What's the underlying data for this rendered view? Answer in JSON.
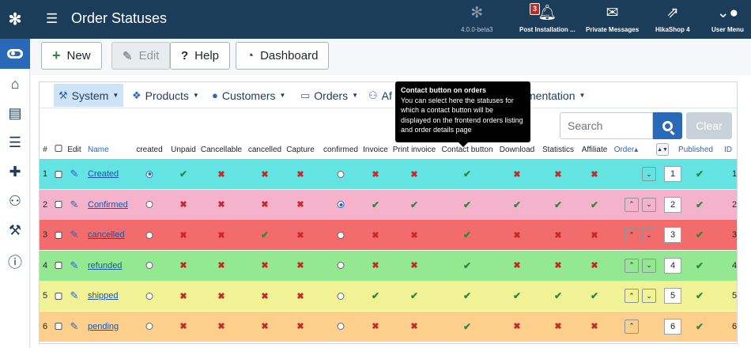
{
  "header": {
    "title": "Order Statuses",
    "version": "4.0.0-beta3",
    "items": [
      {
        "label": "Post Installation ...",
        "badge": "3",
        "icon": "bell-icon"
      },
      {
        "label": "Private Messages",
        "icon": "envelope-icon"
      },
      {
        "label": "HikaShop 4",
        "icon": "external-link-icon"
      },
      {
        "label": "User Menu",
        "icon": "user-icon"
      }
    ]
  },
  "toolbar": {
    "new_label": "New",
    "edit_label": "Edit",
    "help_label": "Help",
    "dashboard_label": "Dashboard"
  },
  "menu": {
    "items": [
      "System",
      "Products",
      "Customers",
      "Orders",
      "Af",
      "mentation"
    ]
  },
  "tooltip": {
    "title": "Contact button on orders",
    "body": "You can select here the statuses for which a contact button will be displayed on the frontend orders listing and order details page"
  },
  "search": {
    "placeholder": "Search",
    "clear_label": "Clear"
  },
  "table": {
    "headers": {
      "num": "#",
      "edit": "Edit",
      "name": "Name",
      "created": "created",
      "unpaid": "Unpaid",
      "cancellable": "Cancellable",
      "cancelled": "cancelled",
      "capture": "Capture",
      "confirmed": "confirmed",
      "invoice": "Invoice",
      "print_invoice": "Print invoice",
      "contact_button": "Contact button",
      "download": "Download",
      "statistics": "Statistics",
      "affiliate": "Affiliate",
      "order": "Order▴",
      "published": "Published",
      "id": "ID"
    },
    "rows": [
      {
        "num": "1",
        "name": "Created",
        "color": "#64e3e3",
        "created": true,
        "confirmed": false,
        "flags": [
          "check",
          "cross",
          "cross",
          "cross",
          "cross",
          "cross",
          "check",
          "cross",
          "cross",
          "cross"
        ],
        "up": false,
        "down": true,
        "order": "1",
        "id": "1"
      },
      {
        "num": "2",
        "name": "Confirmed",
        "color": "#f5b2cb",
        "created": false,
        "confirmed": true,
        "flags": [
          "cross",
          "cross",
          "cross",
          "cross",
          "check",
          "check",
          "check",
          "check",
          "check",
          "check"
        ],
        "up": true,
        "down": true,
        "order": "2",
        "id": "2"
      },
      {
        "num": "3",
        "name": "cancelled",
        "color": "#f26c6c",
        "created": false,
        "confirmed": false,
        "flags": [
          "cross",
          "cross",
          "check",
          "cross",
          "cross",
          "cross",
          "check",
          "cross",
          "cross",
          "cross"
        ],
        "up": true,
        "down": true,
        "order": "3",
        "id": "3"
      },
      {
        "num": "4",
        "name": "refunded",
        "color": "#93e891",
        "created": false,
        "confirmed": false,
        "flags": [
          "cross",
          "cross",
          "cross",
          "cross",
          "cross",
          "cross",
          "check",
          "cross",
          "cross",
          "cross"
        ],
        "up": true,
        "down": true,
        "order": "4",
        "id": "4"
      },
      {
        "num": "5",
        "name": "shipped",
        "color": "#f1f196",
        "created": false,
        "confirmed": false,
        "flags": [
          "cross",
          "cross",
          "cross",
          "cross",
          "check",
          "check",
          "check",
          "check",
          "check",
          "check"
        ],
        "up": true,
        "down": true,
        "order": "5",
        "id": "5"
      },
      {
        "num": "6",
        "name": "pending",
        "color": "#fdcf8c",
        "created": false,
        "confirmed": false,
        "flags": [
          "cross",
          "cross",
          "cross",
          "cross",
          "cross",
          "cross",
          "check",
          "cross",
          "cross",
          "cross"
        ],
        "up": true,
        "down": false,
        "order": "6",
        "id": "6"
      }
    ]
  },
  "colors": {
    "header_bg": "#1c3d5a",
    "accent": "#2a69b8",
    "check": "#2e8540",
    "cross": "#c52827"
  }
}
